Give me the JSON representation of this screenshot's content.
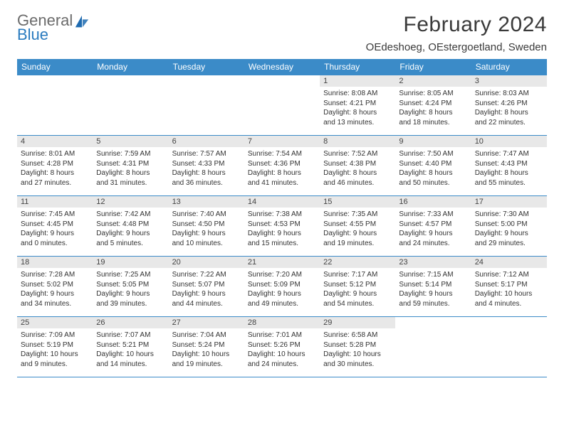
{
  "brand": {
    "line1": "General",
    "line2": "Blue",
    "line1_color": "#6b6b6b",
    "line2_color": "#2a7bbf",
    "icon_color": "#1f6bb0"
  },
  "title": "February 2024",
  "location": "OEdeshoeg, OEstergoetland, Sweden",
  "colors": {
    "header_bar": "#3b8bc8",
    "header_text": "#ffffff",
    "daynum_bg": "#e8e8e8",
    "rule": "#3b8bc8",
    "text": "#333333"
  },
  "days_of_week": [
    "Sunday",
    "Monday",
    "Tuesday",
    "Wednesday",
    "Thursday",
    "Friday",
    "Saturday"
  ],
  "weeks": [
    [
      {
        "n": "",
        "sr": "",
        "ss": "",
        "dl1": "",
        "dl2": ""
      },
      {
        "n": "",
        "sr": "",
        "ss": "",
        "dl1": "",
        "dl2": ""
      },
      {
        "n": "",
        "sr": "",
        "ss": "",
        "dl1": "",
        "dl2": ""
      },
      {
        "n": "",
        "sr": "",
        "ss": "",
        "dl1": "",
        "dl2": ""
      },
      {
        "n": "1",
        "sr": "Sunrise: 8:08 AM",
        "ss": "Sunset: 4:21 PM",
        "dl1": "Daylight: 8 hours",
        "dl2": "and 13 minutes."
      },
      {
        "n": "2",
        "sr": "Sunrise: 8:05 AM",
        "ss": "Sunset: 4:24 PM",
        "dl1": "Daylight: 8 hours",
        "dl2": "and 18 minutes."
      },
      {
        "n": "3",
        "sr": "Sunrise: 8:03 AM",
        "ss": "Sunset: 4:26 PM",
        "dl1": "Daylight: 8 hours",
        "dl2": "and 22 minutes."
      }
    ],
    [
      {
        "n": "4",
        "sr": "Sunrise: 8:01 AM",
        "ss": "Sunset: 4:28 PM",
        "dl1": "Daylight: 8 hours",
        "dl2": "and 27 minutes."
      },
      {
        "n": "5",
        "sr": "Sunrise: 7:59 AM",
        "ss": "Sunset: 4:31 PM",
        "dl1": "Daylight: 8 hours",
        "dl2": "and 31 minutes."
      },
      {
        "n": "6",
        "sr": "Sunrise: 7:57 AM",
        "ss": "Sunset: 4:33 PM",
        "dl1": "Daylight: 8 hours",
        "dl2": "and 36 minutes."
      },
      {
        "n": "7",
        "sr": "Sunrise: 7:54 AM",
        "ss": "Sunset: 4:36 PM",
        "dl1": "Daylight: 8 hours",
        "dl2": "and 41 minutes."
      },
      {
        "n": "8",
        "sr": "Sunrise: 7:52 AM",
        "ss": "Sunset: 4:38 PM",
        "dl1": "Daylight: 8 hours",
        "dl2": "and 46 minutes."
      },
      {
        "n": "9",
        "sr": "Sunrise: 7:50 AM",
        "ss": "Sunset: 4:40 PM",
        "dl1": "Daylight: 8 hours",
        "dl2": "and 50 minutes."
      },
      {
        "n": "10",
        "sr": "Sunrise: 7:47 AM",
        "ss": "Sunset: 4:43 PM",
        "dl1": "Daylight: 8 hours",
        "dl2": "and 55 minutes."
      }
    ],
    [
      {
        "n": "11",
        "sr": "Sunrise: 7:45 AM",
        "ss": "Sunset: 4:45 PM",
        "dl1": "Daylight: 9 hours",
        "dl2": "and 0 minutes."
      },
      {
        "n": "12",
        "sr": "Sunrise: 7:42 AM",
        "ss": "Sunset: 4:48 PM",
        "dl1": "Daylight: 9 hours",
        "dl2": "and 5 minutes."
      },
      {
        "n": "13",
        "sr": "Sunrise: 7:40 AM",
        "ss": "Sunset: 4:50 PM",
        "dl1": "Daylight: 9 hours",
        "dl2": "and 10 minutes."
      },
      {
        "n": "14",
        "sr": "Sunrise: 7:38 AM",
        "ss": "Sunset: 4:53 PM",
        "dl1": "Daylight: 9 hours",
        "dl2": "and 15 minutes."
      },
      {
        "n": "15",
        "sr": "Sunrise: 7:35 AM",
        "ss": "Sunset: 4:55 PM",
        "dl1": "Daylight: 9 hours",
        "dl2": "and 19 minutes."
      },
      {
        "n": "16",
        "sr": "Sunrise: 7:33 AM",
        "ss": "Sunset: 4:57 PM",
        "dl1": "Daylight: 9 hours",
        "dl2": "and 24 minutes."
      },
      {
        "n": "17",
        "sr": "Sunrise: 7:30 AM",
        "ss": "Sunset: 5:00 PM",
        "dl1": "Daylight: 9 hours",
        "dl2": "and 29 minutes."
      }
    ],
    [
      {
        "n": "18",
        "sr": "Sunrise: 7:28 AM",
        "ss": "Sunset: 5:02 PM",
        "dl1": "Daylight: 9 hours",
        "dl2": "and 34 minutes."
      },
      {
        "n": "19",
        "sr": "Sunrise: 7:25 AM",
        "ss": "Sunset: 5:05 PM",
        "dl1": "Daylight: 9 hours",
        "dl2": "and 39 minutes."
      },
      {
        "n": "20",
        "sr": "Sunrise: 7:22 AM",
        "ss": "Sunset: 5:07 PM",
        "dl1": "Daylight: 9 hours",
        "dl2": "and 44 minutes."
      },
      {
        "n": "21",
        "sr": "Sunrise: 7:20 AM",
        "ss": "Sunset: 5:09 PM",
        "dl1": "Daylight: 9 hours",
        "dl2": "and 49 minutes."
      },
      {
        "n": "22",
        "sr": "Sunrise: 7:17 AM",
        "ss": "Sunset: 5:12 PM",
        "dl1": "Daylight: 9 hours",
        "dl2": "and 54 minutes."
      },
      {
        "n": "23",
        "sr": "Sunrise: 7:15 AM",
        "ss": "Sunset: 5:14 PM",
        "dl1": "Daylight: 9 hours",
        "dl2": "and 59 minutes."
      },
      {
        "n": "24",
        "sr": "Sunrise: 7:12 AM",
        "ss": "Sunset: 5:17 PM",
        "dl1": "Daylight: 10 hours",
        "dl2": "and 4 minutes."
      }
    ],
    [
      {
        "n": "25",
        "sr": "Sunrise: 7:09 AM",
        "ss": "Sunset: 5:19 PM",
        "dl1": "Daylight: 10 hours",
        "dl2": "and 9 minutes."
      },
      {
        "n": "26",
        "sr": "Sunrise: 7:07 AM",
        "ss": "Sunset: 5:21 PM",
        "dl1": "Daylight: 10 hours",
        "dl2": "and 14 minutes."
      },
      {
        "n": "27",
        "sr": "Sunrise: 7:04 AM",
        "ss": "Sunset: 5:24 PM",
        "dl1": "Daylight: 10 hours",
        "dl2": "and 19 minutes."
      },
      {
        "n": "28",
        "sr": "Sunrise: 7:01 AM",
        "ss": "Sunset: 5:26 PM",
        "dl1": "Daylight: 10 hours",
        "dl2": "and 24 minutes."
      },
      {
        "n": "29",
        "sr": "Sunrise: 6:58 AM",
        "ss": "Sunset: 5:28 PM",
        "dl1": "Daylight: 10 hours",
        "dl2": "and 30 minutes."
      },
      {
        "n": "",
        "sr": "",
        "ss": "",
        "dl1": "",
        "dl2": ""
      },
      {
        "n": "",
        "sr": "",
        "ss": "",
        "dl1": "",
        "dl2": ""
      }
    ]
  ]
}
